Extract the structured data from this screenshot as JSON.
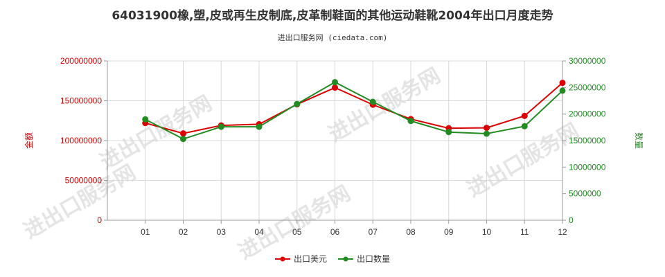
{
  "chart_data": {
    "type": "line",
    "title": "64031900橡,塑,皮或再生皮制底,皮革制鞋面的其他运动鞋靴2004年出口月度走势",
    "subtitle": "进出口服务网 (ciedata.com)",
    "watermark": "进出口服务网",
    "categories": [
      "01",
      "02",
      "03",
      "04",
      "05",
      "06",
      "07",
      "08",
      "09",
      "10",
      "11",
      "12"
    ],
    "y_left": {
      "label": "金额",
      "min": 0,
      "max": 200000000,
      "ticks": [
        0,
        50000000,
        100000000,
        150000000,
        200000000
      ]
    },
    "y_right": {
      "label": "数量",
      "min": 0,
      "max": 30000000,
      "ticks": [
        0,
        5000000,
        10000000,
        15000000,
        20000000,
        25000000,
        30000000
      ]
    },
    "grid": true,
    "legend_position": "bottom",
    "series": [
      {
        "name": "出口美元",
        "axis": "left",
        "color": "#dd0000",
        "values": [
          122000000,
          109000000,
          119000000,
          120500000,
          145500000,
          166500000,
          145000000,
          127000000,
          115500000,
          116000000,
          131000000,
          172500000
        ]
      },
      {
        "name": "出口数量",
        "axis": "right",
        "color": "#228b22",
        "values": [
          19000000,
          15300000,
          17600000,
          17600000,
          21900000,
          26000000,
          22300000,
          18700000,
          16600000,
          16300000,
          17700000,
          24400000
        ]
      }
    ]
  }
}
